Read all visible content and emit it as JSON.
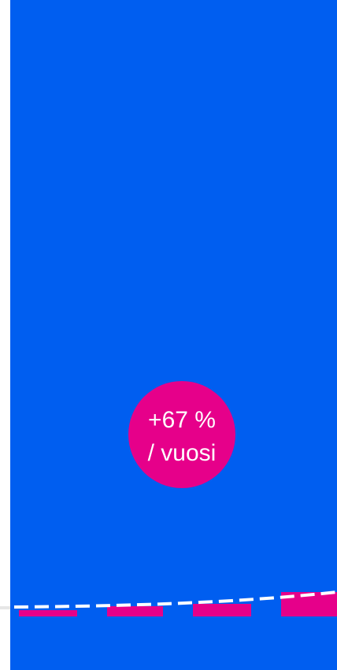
{
  "badge": {
    "line1": "+67 %",
    "line2": "/ vuosi"
  }
}
